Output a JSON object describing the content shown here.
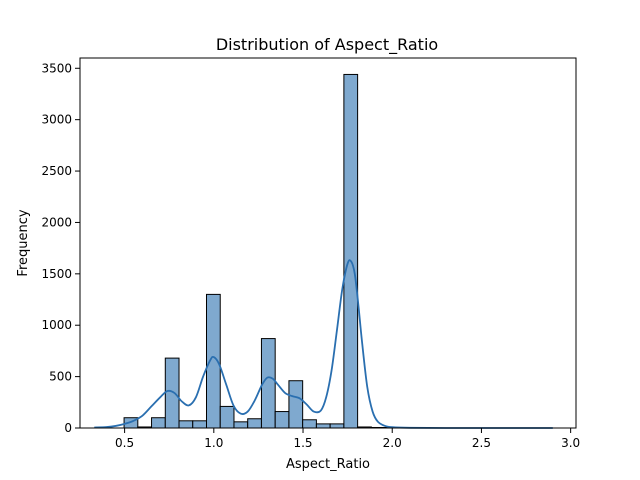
{
  "chart_data": {
    "type": "bar",
    "subtype": "histogram-with-kde",
    "title": "Distribution of Aspect_Ratio",
    "xlabel": "Aspect_Ratio",
    "ylabel": "Frequency",
    "xlim": [
      0.25,
      3.03
    ],
    "ylim": [
      0,
      3600
    ],
    "xticks": [
      0.5,
      1.0,
      1.5,
      2.0,
      2.5,
      3.0
    ],
    "xtick_labels": [
      "0.5",
      "1.0",
      "1.5",
      "2.0",
      "2.5",
      "3.0"
    ],
    "yticks": [
      0,
      500,
      1000,
      1500,
      2000,
      2500,
      3000,
      3500
    ],
    "ytick_labels": [
      "0",
      "500",
      "1000",
      "1500",
      "2000",
      "2500",
      "3000",
      "3500"
    ],
    "bin_width": 0.077,
    "bins": [
      {
        "x0": 0.497,
        "count": 100
      },
      {
        "x0": 0.574,
        "count": 10
      },
      {
        "x0": 0.651,
        "count": 100
      },
      {
        "x0": 0.728,
        "count": 680
      },
      {
        "x0": 0.805,
        "count": 70
      },
      {
        "x0": 0.882,
        "count": 70
      },
      {
        "x0": 0.959,
        "count": 1300
      },
      {
        "x0": 1.036,
        "count": 210
      },
      {
        "x0": 1.113,
        "count": 60
      },
      {
        "x0": 1.19,
        "count": 90
      },
      {
        "x0": 1.267,
        "count": 870
      },
      {
        "x0": 1.344,
        "count": 160
      },
      {
        "x0": 1.421,
        "count": 460
      },
      {
        "x0": 1.498,
        "count": 80
      },
      {
        "x0": 1.575,
        "count": 40
      },
      {
        "x0": 1.652,
        "count": 40
      },
      {
        "x0": 1.729,
        "count": 3440
      },
      {
        "x0": 1.806,
        "count": 10
      },
      {
        "x0": 1.883,
        "count": 5
      },
      {
        "x0": 1.96,
        "count": 5
      }
    ],
    "kde": {
      "x": [
        0.33,
        0.4,
        0.45,
        0.5,
        0.55,
        0.6,
        0.65,
        0.7,
        0.74,
        0.78,
        0.82,
        0.86,
        0.9,
        0.94,
        0.98,
        1.0,
        1.03,
        1.07,
        1.11,
        1.15,
        1.19,
        1.23,
        1.27,
        1.3,
        1.33,
        1.36,
        1.4,
        1.44,
        1.48,
        1.52,
        1.56,
        1.6,
        1.63,
        1.66,
        1.69,
        1.72,
        1.75,
        1.77,
        1.79,
        1.81,
        1.83,
        1.86,
        1.89,
        1.92,
        1.96,
        2.0,
        2.1,
        2.3,
        2.6,
        2.9
      ],
      "y": [
        5,
        10,
        20,
        40,
        70,
        120,
        210,
        300,
        360,
        340,
        260,
        220,
        300,
        500,
        660,
        690,
        620,
        420,
        220,
        140,
        160,
        270,
        420,
        490,
        480,
        420,
        340,
        310,
        290,
        230,
        160,
        170,
        300,
        560,
        950,
        1350,
        1600,
        1620,
        1500,
        1200,
        850,
        400,
        160,
        60,
        20,
        8,
        2,
        0,
        0,
        0
      ]
    }
  }
}
